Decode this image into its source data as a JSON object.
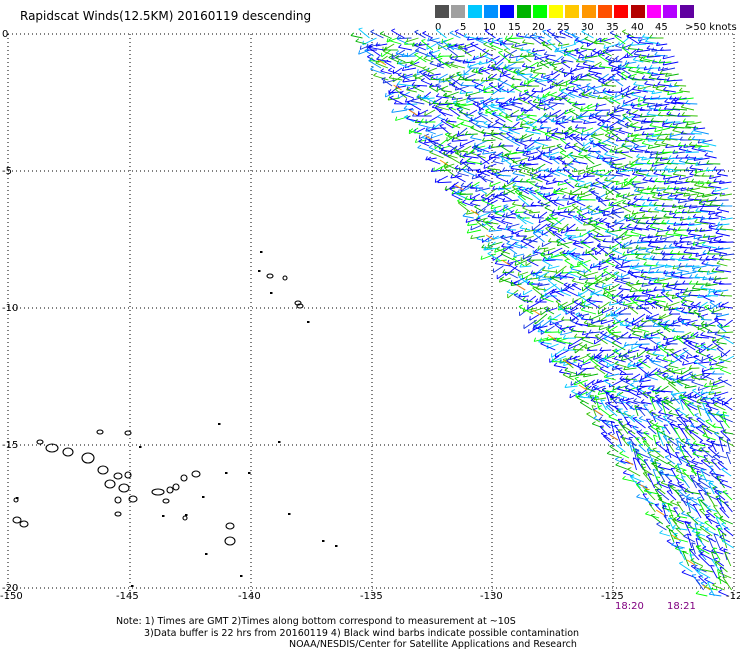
{
  "title": "Rapidscat Winds(12.5KM) 20160119 descending",
  "legend": {
    "labels": [
      "0",
      "5",
      "10",
      "15",
      "20",
      "25",
      "30",
      "35",
      "40",
      "45",
      ">50 knots"
    ],
    "colors": [
      "#505050",
      "#a0a0a0",
      "#00c8ff",
      "#0090ff",
      "#0000ff",
      "#00b400",
      "#00ff00",
      "#ffff00",
      "#ffc800",
      "#ff9600",
      "#ff5000",
      "#ff0000",
      "#b40000",
      "#ff00ff",
      "#b400ff",
      "#6000a0"
    ]
  },
  "axes": {
    "lon_labels": [
      "-150",
      "-145",
      "-140",
      "-135",
      "-130",
      "-125",
      "-12"
    ],
    "lat_labels": [
      "0",
      "-5",
      "-10",
      "-15",
      "-20"
    ]
  },
  "times": [
    "18:20",
    "18:21"
  ],
  "notes": {
    "line1": "Note: 1) Times are GMT 2)Times along bottom correspond to measurement at ~10S",
    "line2": "3)Data buffer is 22 hrs from 20160119 4) Black wind barbs indicate possible contamination",
    "line3": "NOAA/NESDIS/Center for Satellite Applications and Research"
  }
}
